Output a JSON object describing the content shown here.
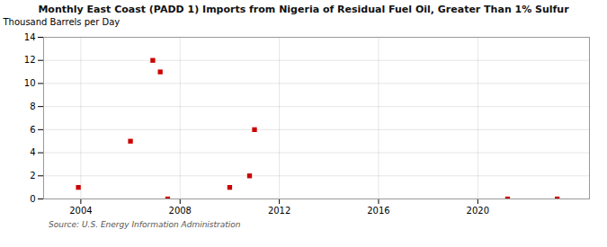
{
  "chart_data": {
    "type": "scatter",
    "title": "Monthly East Coast (PADD 1) Imports from Nigeria of Residual Fuel Oil, Greater Than 1% Sulfur",
    "ylabel": "Thousand Barrels per Day",
    "source": "Source: U.S. Energy Information Administration",
    "x": [
      2003.9,
      2006.0,
      2006.9,
      2007.2,
      2007.5,
      2010.0,
      2010.8,
      2011.0,
      2021.2,
      2023.2
    ],
    "values": [
      1.0,
      5.0,
      12.0,
      11.0,
      0.0,
      1.0,
      2.0,
      6.0,
      0.0,
      0.0
    ],
    "color": "#cc0000",
    "marker": "square",
    "xlim": [
      2002.5,
      2024.5
    ],
    "xticks": [
      2004,
      2008,
      2012,
      2016,
      2020
    ],
    "ylim": [
      0,
      14
    ],
    "yticks": [
      0,
      2,
      4,
      6,
      8,
      10,
      12,
      14
    ],
    "grid": true
  }
}
